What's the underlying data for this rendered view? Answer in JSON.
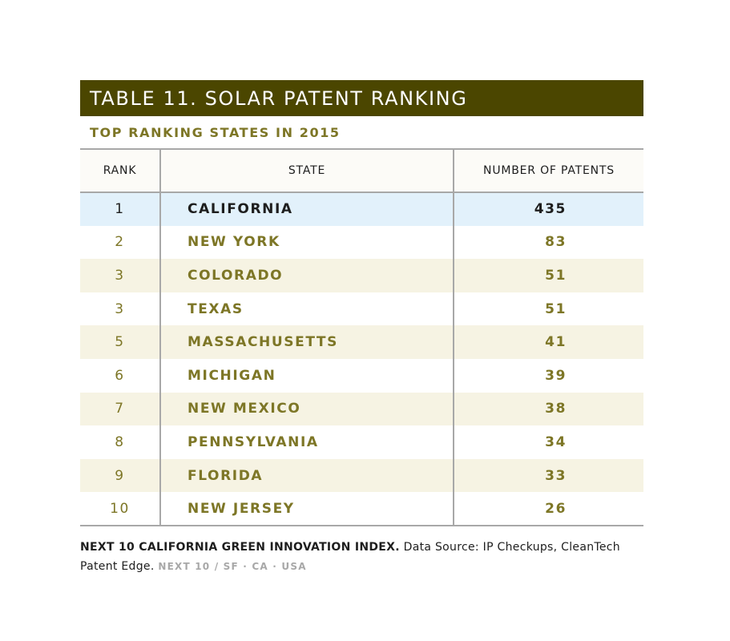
{
  "title": "TABLE 11. SOLAR PATENT RANKING",
  "subtitle": "TOP RANKING STATES IN 2015",
  "columns": {
    "rank": "RANK",
    "state": "STATE",
    "patents": "NUMBER OF PATENTS"
  },
  "rows": [
    {
      "rank": "1",
      "state": "CALIFORNIA",
      "patents": "435"
    },
    {
      "rank": "2",
      "state": "NEW YORK",
      "patents": "83"
    },
    {
      "rank": "3",
      "state": "COLORADO",
      "patents": "51"
    },
    {
      "rank": "3",
      "state": "TEXAS",
      "patents": "51"
    },
    {
      "rank": "5",
      "state": "MASSACHUSETTS",
      "patents": "41"
    },
    {
      "rank": "6",
      "state": "MICHIGAN",
      "patents": "39"
    },
    {
      "rank": "7",
      "state": "NEW MEXICO",
      "patents": "38"
    },
    {
      "rank": "8",
      "state": "PENNSYLVANIA",
      "patents": "34"
    },
    {
      "rank": "9",
      "state": "FLORIDA",
      "patents": "33"
    },
    {
      "rank": "10",
      "state": "NEW JERSEY",
      "patents": "26"
    }
  ],
  "footer": {
    "bold": "NEXT 10 CALIFORNIA GREEN INNOVATION INDEX.",
    "source": "Data Source: IP Checkups, CleanTech Patent Edge.",
    "tag": "NEXT 10 / SF · CA · USA"
  },
  "colors": {
    "title_bar": "#4b4600",
    "accent_text": "#7d7626",
    "highlight_row": "#e2f1fb",
    "alt_row": "#f6f3e3",
    "rule": "#a8a8a8"
  }
}
